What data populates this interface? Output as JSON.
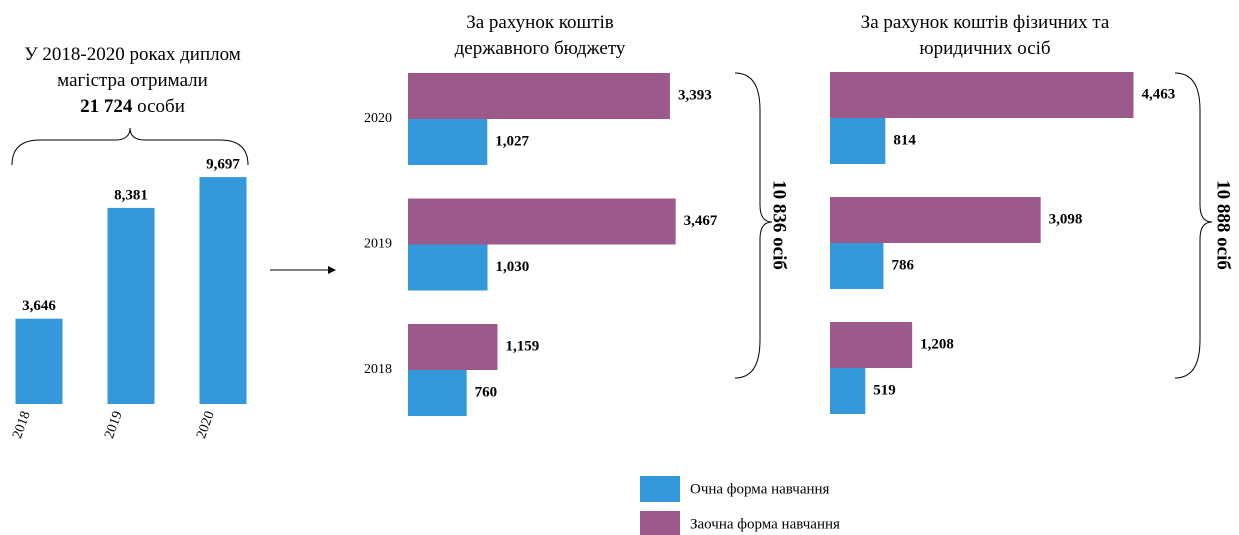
{
  "header": {
    "title": "У 2018-2020 роках диплом магістра отримали",
    "total": "21 724",
    "total_unit": "особи"
  },
  "chart_data": [
    {
      "type": "bar",
      "categories": [
        "2018",
        "2019",
        "2020"
      ],
      "values": [
        3646,
        8381,
        9697
      ],
      "value_labels": [
        "3,646",
        "8,381",
        "9,697"
      ],
      "color": "#3498db"
    },
    {
      "type": "barh",
      "title": "За рахунок коштів державного бюджету",
      "categories": [
        "2020",
        "2019",
        "2018"
      ],
      "series": [
        {
          "name": "Заочна форма навчання",
          "color": "#9b5a8a",
          "values": [
            3393,
            3467,
            1159
          ],
          "value_labels": [
            "3,393",
            "3,467",
            "1,159"
          ]
        },
        {
          "name": "Очна форма навчання",
          "color": "#3498db",
          "values": [
            1027,
            1030,
            760
          ],
          "value_labels": [
            "1,027",
            "1,030",
            "760"
          ]
        }
      ],
      "annotation": "10 836 осіб"
    },
    {
      "type": "barh",
      "title": "За рахунок коштів фізичних та юридичних осіб",
      "series": [
        {
          "color": "#9b5a8a",
          "values": [
            4463,
            3098,
            1208
          ],
          "value_labels": [
            "4,463",
            "3,098",
            "1,208"
          ]
        },
        {
          "color": "#3498db",
          "values": [
            814,
            786,
            519
          ],
          "value_labels": [
            "814",
            "786",
            "519"
          ]
        }
      ],
      "annotation": "10 888 осіб"
    }
  ]
}
